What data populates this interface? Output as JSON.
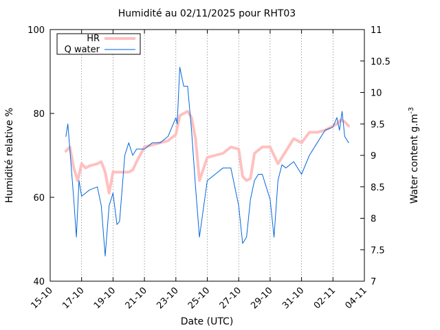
{
  "chart_data": {
    "type": "line",
    "title": "Humidité au 02/11/2025 pour RHT03",
    "xlabel": "Date (UTC)",
    "ylabel": "Humidité relative %",
    "y2label_main": "Water content g.m",
    "y2label_sup": "-3",
    "ylim": [
      40,
      100
    ],
    "y2lim": [
      7,
      11
    ],
    "xlim": [
      "2025-10-15",
      "2025-11-04"
    ],
    "x_ticks": [
      "15-10",
      "17-10",
      "19-10",
      "21-10",
      "23-10",
      "25-10",
      "27-10",
      "29-10",
      "31-10",
      "02-11",
      "04-11"
    ],
    "x_tick_dates": [
      "2025-10-15",
      "2025-10-17",
      "2025-10-19",
      "2025-10-21",
      "2025-10-23",
      "2025-10-25",
      "2025-10-27",
      "2025-10-29",
      "2025-10-31",
      "2025-11-02",
      "2025-11-04"
    ],
    "y_ticks": [
      40,
      60,
      80,
      100
    ],
    "y2_ticks": [
      "7",
      "7.5",
      "8",
      "8.5",
      "9",
      "9.5",
      "10",
      "10.5",
      "11"
    ],
    "grid": "x-only dotted",
    "legend": "top-left",
    "series": [
      {
        "name": "HR",
        "axis": "left",
        "color": "#ffc0c0",
        "x": [
          "2025-10-16T00:00",
          "2025-10-16T06:00",
          "2025-10-16T12:00",
          "2025-10-16T18:00",
          "2025-10-17T00:00",
          "2025-10-17T06:00",
          "2025-10-17T12:00",
          "2025-10-18T00:00",
          "2025-10-18T06:00",
          "2025-10-18T12:00",
          "2025-10-18T18:00",
          "2025-10-19T00:00",
          "2025-10-19T12:00",
          "2025-10-20T00:00",
          "2025-10-20T06:00",
          "2025-10-20T12:00",
          "2025-10-21T00:00",
          "2025-10-21T12:00",
          "2025-10-22T00:00",
          "2025-10-22T12:00",
          "2025-10-23T00:00",
          "2025-10-23T06:00",
          "2025-10-23T12:00",
          "2025-10-23T18:00",
          "2025-10-24T00:00",
          "2025-10-24T06:00",
          "2025-10-24T12:00",
          "2025-10-25T00:00",
          "2025-10-25T12:00",
          "2025-10-26T00:00",
          "2025-10-26T12:00",
          "2025-10-27T00:00",
          "2025-10-27T06:00",
          "2025-10-27T12:00",
          "2025-10-27T18:00",
          "2025-10-28T00:00",
          "2025-10-28T12:00",
          "2025-10-29T00:00",
          "2025-10-29T12:00",
          "2025-10-29T18:00",
          "2025-10-30T00:00",
          "2025-10-30T12:00",
          "2025-10-31T00:00",
          "2025-10-31T12:00",
          "2025-11-01T00:00",
          "2025-11-01T12:00",
          "2025-11-02T00:00",
          "2025-11-02T06:00",
          "2025-11-02T12:00",
          "2025-11-02T18:00",
          "2025-11-03T00:00"
        ],
        "values": [
          71,
          72,
          67,
          64,
          68,
          67,
          67.5,
          68,
          68.5,
          66,
          61,
          66,
          66,
          66,
          66.5,
          68.5,
          72,
          72.5,
          73,
          73.5,
          75,
          79.5,
          80,
          80.5,
          79,
          74,
          64,
          69.5,
          70,
          70.5,
          72,
          71.5,
          65,
          64,
          64.5,
          70.5,
          72,
          72,
          68,
          69.5,
          71,
          74,
          73,
          75.5,
          75.5,
          76,
          77,
          77.5,
          78.5,
          78,
          77
        ]
      },
      {
        "name": "Q water",
        "axis": "right",
        "color": "#0066dd",
        "x": [
          "2025-10-16T00:00",
          "2025-10-16T03:00",
          "2025-10-16T06:00",
          "2025-10-16T12:00",
          "2025-10-16T16:00",
          "2025-10-16T20:00",
          "2025-10-17T00:00",
          "2025-10-17T06:00",
          "2025-10-17T12:00",
          "2025-10-18T00:00",
          "2025-10-18T06:00",
          "2025-10-18T12:00",
          "2025-10-18T18:00",
          "2025-10-19T00:00",
          "2025-10-19T06:00",
          "2025-10-19T10:00",
          "2025-10-19T18:00",
          "2025-10-20T00:00",
          "2025-10-20T06:00",
          "2025-10-20T12:00",
          "2025-10-21T00:00",
          "2025-10-21T12:00",
          "2025-10-22T00:00",
          "2025-10-22T12:00",
          "2025-10-23T00:00",
          "2025-10-23T02:00",
          "2025-10-23T06:00",
          "2025-10-23T12:00",
          "2025-10-23T18:00",
          "2025-10-24T00:00",
          "2025-10-24T06:00",
          "2025-10-24T12:00",
          "2025-10-25T00:00",
          "2025-10-25T12:00",
          "2025-10-26T00:00",
          "2025-10-26T12:00",
          "2025-10-27T00:00",
          "2025-10-27T06:00",
          "2025-10-27T12:00",
          "2025-10-27T18:00",
          "2025-10-28T00:00",
          "2025-10-28T06:00",
          "2025-10-28T12:00",
          "2025-10-29T00:00",
          "2025-10-29T06:00",
          "2025-10-29T12:00",
          "2025-10-29T18:00",
          "2025-10-30T00:00",
          "2025-10-30T12:00",
          "2025-10-31T00:00",
          "2025-10-31T12:00",
          "2025-11-01T00:00",
          "2025-11-01T12:00",
          "2025-11-02T00:00",
          "2025-11-02T06:00",
          "2025-11-02T10:00",
          "2025-11-02T14:00",
          "2025-11-02T18:00",
          "2025-11-03T00:00"
        ],
        "values": [
          9.3,
          9.5,
          9.1,
          8.3,
          7.7,
          8.6,
          8.35,
          8.4,
          8.45,
          8.5,
          8.2,
          7.4,
          8.2,
          8.4,
          7.9,
          7.95,
          9.0,
          9.2,
          9.0,
          9.1,
          9.1,
          9.2,
          9.2,
          9.3,
          9.6,
          9.5,
          10.4,
          10.1,
          10.1,
          9.4,
          8.5,
          7.7,
          8.6,
          8.7,
          8.8,
          8.8,
          8.2,
          7.6,
          7.7,
          8.3,
          8.6,
          8.7,
          8.7,
          8.3,
          7.7,
          8.6,
          8.85,
          8.8,
          8.9,
          8.7,
          9.0,
          9.2,
          9.4,
          9.45,
          9.6,
          9.4,
          9.7,
          9.3,
          9.2
        ]
      }
    ]
  }
}
